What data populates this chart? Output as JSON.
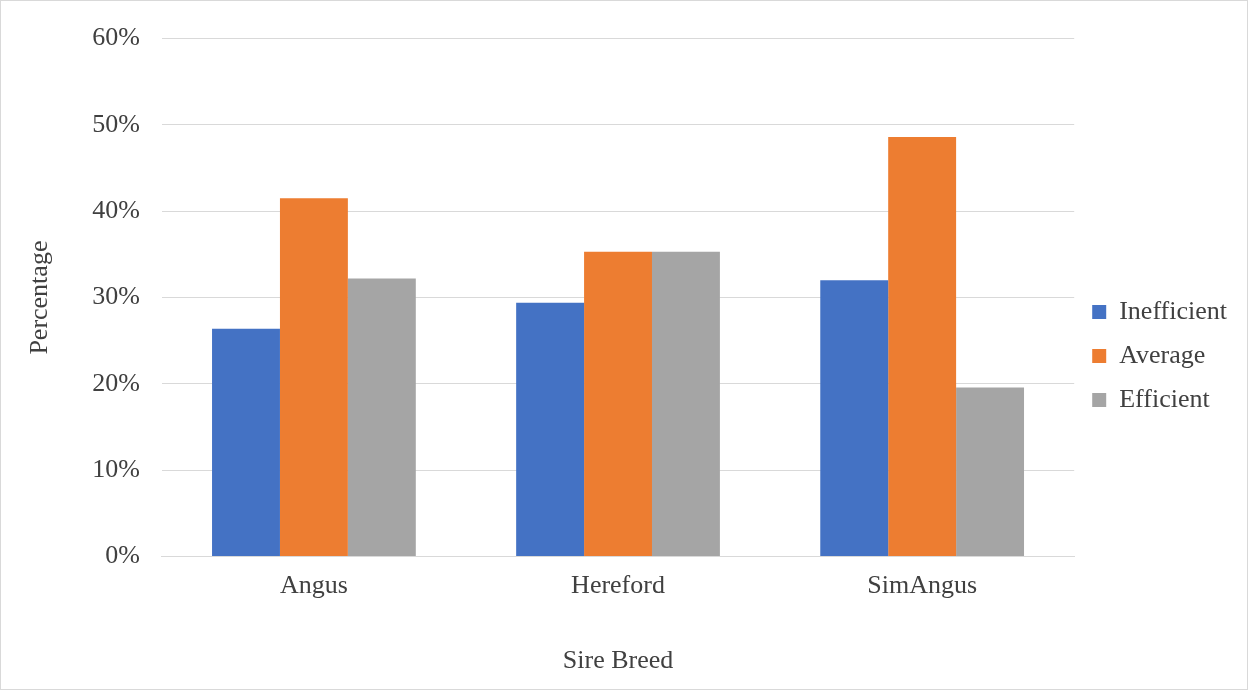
{
  "chart_data": {
    "type": "bar",
    "xlabel": "Sire Breed",
    "ylabel": "Percentage",
    "categories": [
      "Angus",
      "Hereford",
      "SimAngus"
    ],
    "series": [
      {
        "name": "Inefficient",
        "color": "#4472c4",
        "values": [
          26.4,
          29.4,
          32.0
        ]
      },
      {
        "name": "Average",
        "color": "#ed7d31",
        "values": [
          41.5,
          35.3,
          48.6
        ]
      },
      {
        "name": "Efficient",
        "color": "#a5a5a5",
        "values": [
          32.2,
          35.3,
          19.6
        ]
      }
    ],
    "ylim": [
      0,
      60
    ],
    "yticks": [
      {
        "value": 0,
        "label": "0%"
      },
      {
        "value": 10,
        "label": "10%"
      },
      {
        "value": 20,
        "label": "20%"
      },
      {
        "value": 30,
        "label": "30%"
      },
      {
        "value": 40,
        "label": "40%"
      },
      {
        "value": 50,
        "label": "50%"
      },
      {
        "value": 60,
        "label": "60%"
      }
    ],
    "grid": "y",
    "legend": "right"
  }
}
